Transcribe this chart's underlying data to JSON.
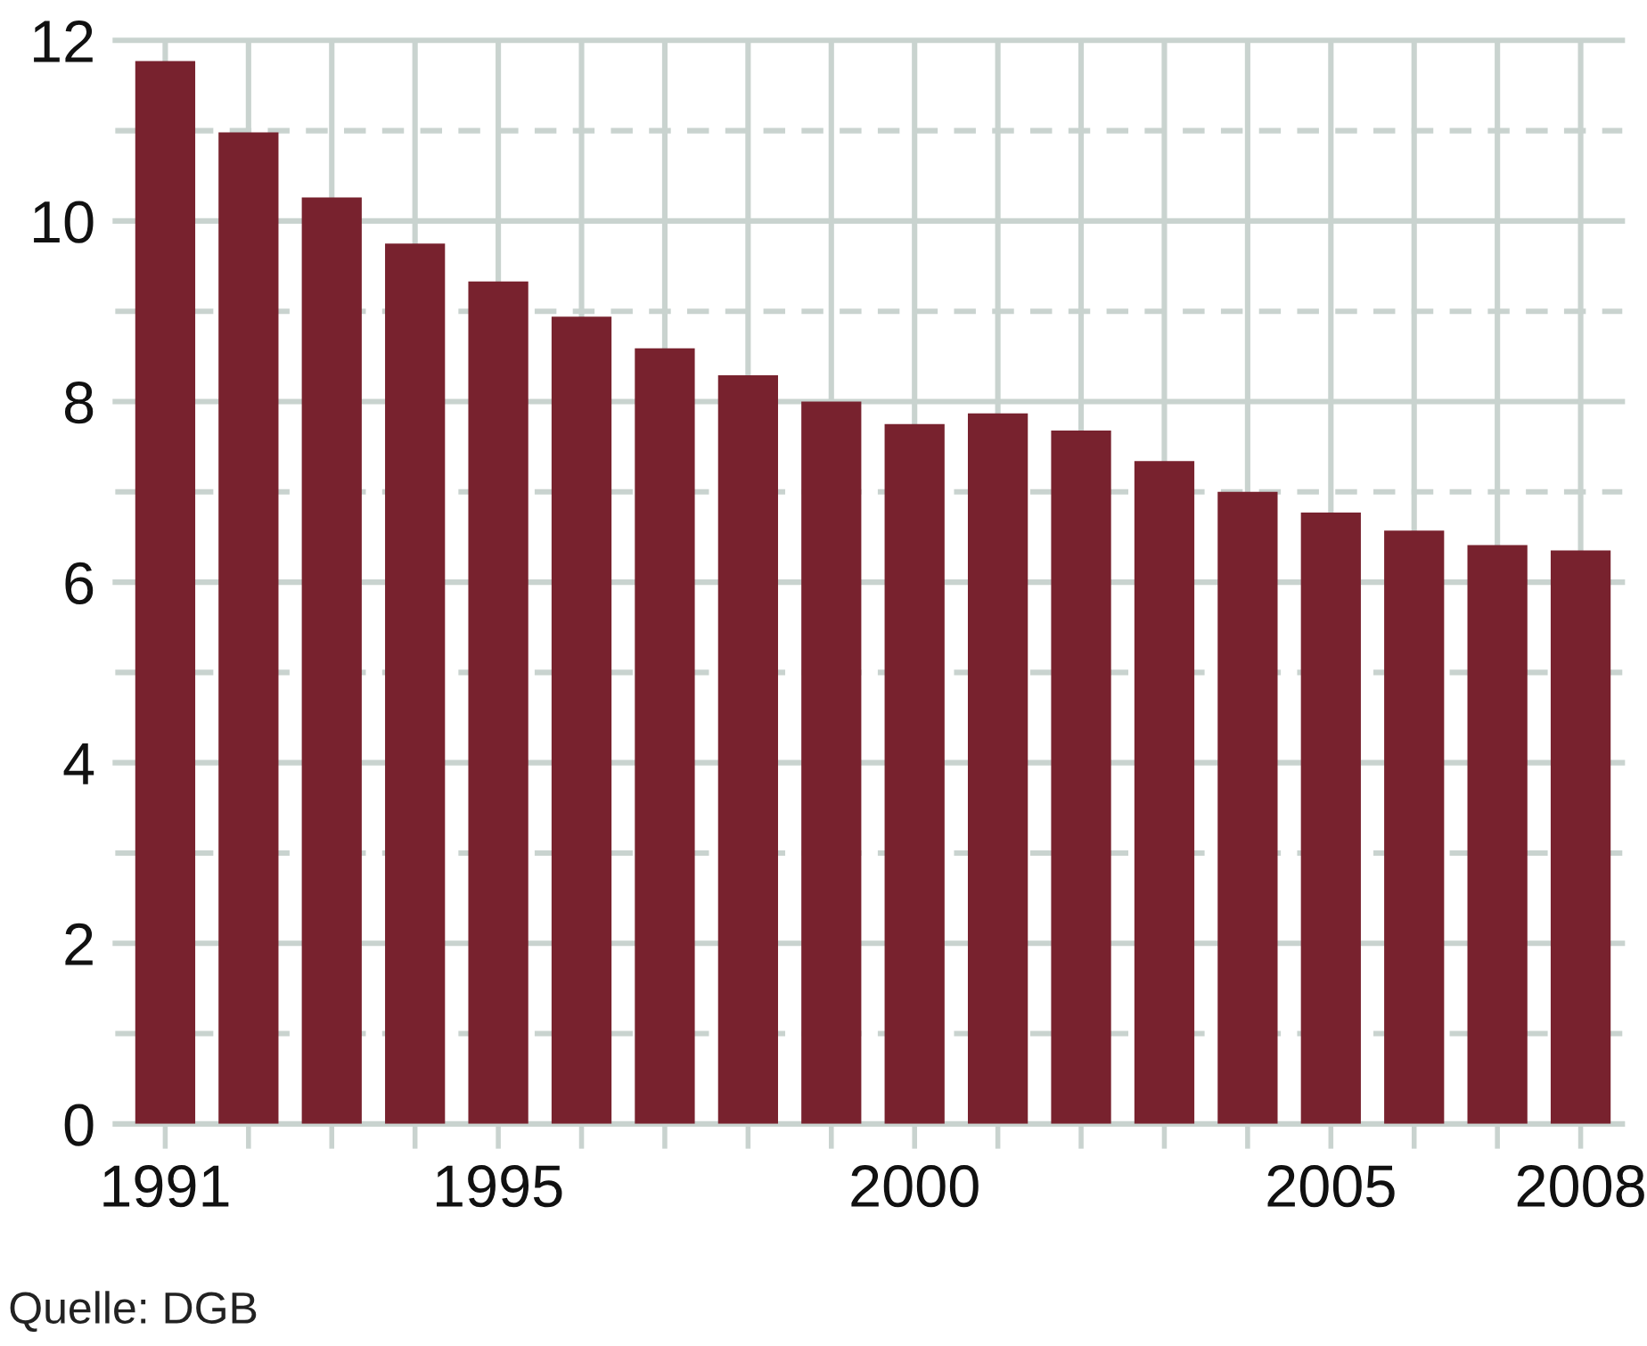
{
  "chart_data": {
    "type": "bar",
    "categories": [
      "1991",
      null,
      null,
      null,
      "1995",
      null,
      null,
      null,
      null,
      "2000",
      null,
      null,
      null,
      null,
      "2005",
      null,
      null,
      "2008"
    ],
    "values": [
      11.77,
      10.98,
      10.26,
      9.75,
      9.33,
      8.94,
      8.59,
      8.29,
      8.0,
      7.75,
      7.87,
      7.68,
      7.34,
      7.0,
      6.77,
      6.57,
      6.41,
      6.35
    ],
    "color": "#78222e",
    "ylim": [
      0,
      12
    ],
    "yticks": [
      0,
      {
        "value": 1,
        "label": null
      },
      2,
      {
        "value": 3,
        "label": null
      },
      4,
      {
        "value": 5,
        "label": null
      },
      6,
      {
        "value": 7,
        "label": null
      },
      8,
      {
        "value": 9,
        "label": null
      },
      10,
      {
        "value": 11,
        "label": null
      },
      12
    ],
    "grid": true,
    "annotations": [
      "Quelle: DGB"
    ]
  }
}
